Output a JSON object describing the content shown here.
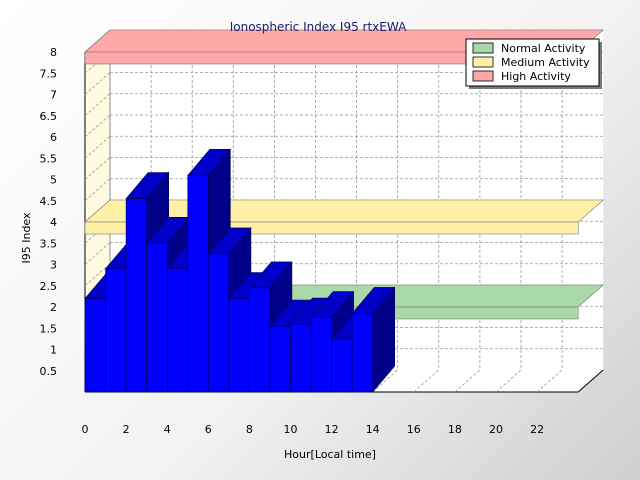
{
  "chart_data": {
    "type": "bar",
    "title": "Ionospheric Index I95 rtxEWA",
    "xlabel": "Hour[Local time]",
    "ylabel": "I95 Index",
    "x": [
      0,
      1,
      2,
      3,
      4,
      5,
      6,
      7,
      8,
      9,
      10,
      11,
      12,
      13
    ],
    "values": [
      2.2,
      2.9,
      4.55,
      3.5,
      2.9,
      5.1,
      3.25,
      2.2,
      2.45,
      1.55,
      1.6,
      1.75,
      1.25,
      1.85
    ],
    "xlim": [
      0,
      23
    ],
    "ylim": [
      0,
      8
    ],
    "x_ticks": [
      "0",
      "2",
      "4",
      "6",
      "8",
      "10",
      "12",
      "14",
      "16",
      "18",
      "20",
      "22"
    ],
    "y_ticks": [
      "0.5",
      "1",
      "1.5",
      "2",
      "2.5",
      "3",
      "3.5",
      "4",
      "4.5",
      "5",
      "5.5",
      "6",
      "6.5",
      "7",
      "7.5",
      "8"
    ],
    "bar_color": "#0000ff",
    "grid": true,
    "legend_position": "top-right",
    "bands": [
      {
        "name": "Normal Activity",
        "value": 2.0,
        "color": "#a9d8a9"
      },
      {
        "name": "Medium Activity",
        "value": 4.0,
        "color": "#fff0a8"
      },
      {
        "name": "High Activity",
        "value": 8.0,
        "color": "#ffa8a8"
      }
    ]
  }
}
